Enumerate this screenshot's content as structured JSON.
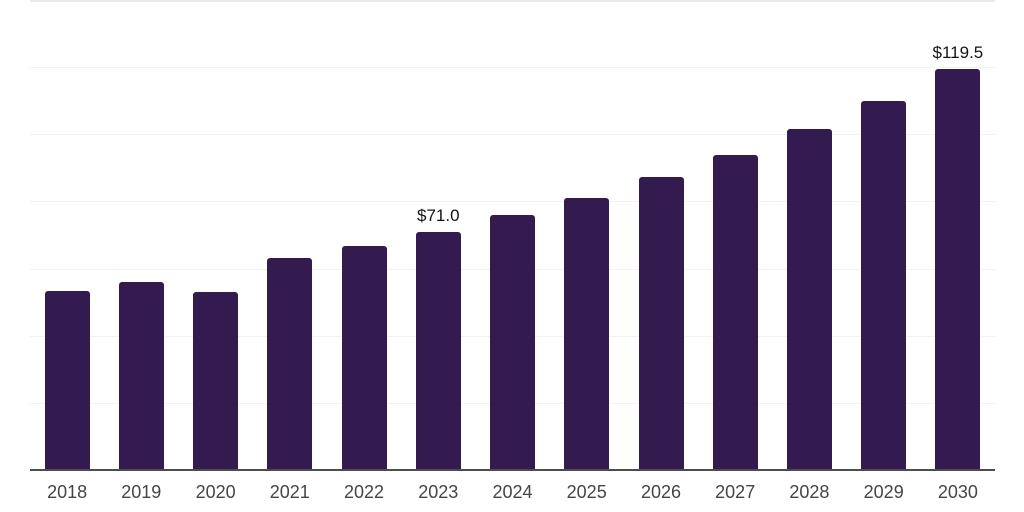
{
  "chart_data": {
    "type": "bar",
    "title": "",
    "xlabel": "",
    "ylabel": "",
    "categories": [
      "2018",
      "2019",
      "2020",
      "2021",
      "2022",
      "2023",
      "2024",
      "2025",
      "2026",
      "2027",
      "2028",
      "2029",
      "2030"
    ],
    "values": [
      53.3,
      56.0,
      53.0,
      63.3,
      66.6,
      71.0,
      76.1,
      81.0,
      87.3,
      93.8,
      101.6,
      110.0,
      119.5
    ],
    "value_labels": {
      "2023": "$71.0",
      "2030": "$119.5"
    },
    "ylim": [
      0,
      140
    ],
    "gridline_step": 20,
    "grid": true,
    "legend": false,
    "colors": {
      "bar": "#341b4f",
      "value_label": "#141414",
      "tick_label": "#454545",
      "gridline": "#f2f2f2",
      "top_gridline": "#e9e9e9",
      "axis_line": "#4d4d4d",
      "background": "#ffffff"
    }
  }
}
